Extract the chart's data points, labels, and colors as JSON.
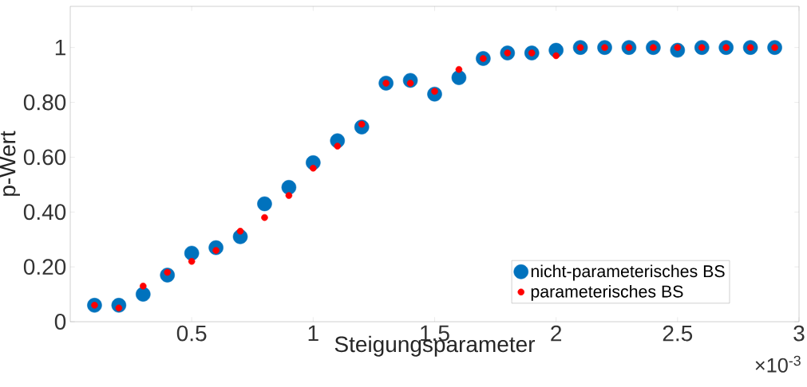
{
  "chart_data": {
    "type": "scatter",
    "xlabel": "Steigungsparameter",
    "ylabel": "p-Wert",
    "x": [
      0.1,
      0.2,
      0.3,
      0.4,
      0.5,
      0.6,
      0.7,
      0.8,
      0.9,
      1.0,
      1.1,
      1.2,
      1.3,
      1.4,
      1.5,
      1.6,
      1.7,
      1.8,
      1.9,
      2.0,
      2.1,
      2.2,
      2.3,
      2.4,
      2.5,
      2.6,
      2.7,
      2.8,
      2.9
    ],
    "series": [
      {
        "name": "nicht-parameterisches BS",
        "color": "#0072bd",
        "values": [
          0.06,
          0.06,
          0.1,
          0.17,
          0.25,
          0.27,
          0.31,
          0.43,
          0.49,
          0.58,
          0.66,
          0.71,
          0.87,
          0.88,
          0.83,
          0.89,
          0.96,
          0.98,
          0.98,
          0.99,
          1.0,
          1.0,
          1.0,
          1.0,
          0.99,
          1.0,
          1.0,
          1.0,
          1.0
        ]
      },
      {
        "name": "parameterisches BS",
        "color": "#ff0000",
        "values": [
          0.06,
          0.05,
          0.13,
          0.18,
          0.22,
          0.26,
          0.33,
          0.38,
          0.46,
          0.56,
          0.64,
          0.72,
          0.87,
          0.87,
          0.84,
          0.92,
          0.96,
          0.98,
          0.98,
          0.97,
          1.0,
          1.0,
          1.0,
          1.0,
          1.0,
          1.0,
          1.0,
          1.0,
          1.0
        ]
      }
    ],
    "xlim": [
      0,
      3
    ],
    "xticks": [
      0.5,
      1,
      1.5,
      2,
      2.5,
      3
    ],
    "ylim": [
      0,
      1.15
    ],
    "yticks": [
      0,
      {
        "value": 0.2,
        "label": "0.20"
      },
      {
        "value": 0.4,
        "label": "0.40"
      },
      {
        "value": 0.6,
        "label": "0.60"
      },
      {
        "value": 0.8,
        "label": "0.80"
      },
      1
    ],
    "annotations": [
      "×10$^{-3}$"
    ],
    "marker": "circle",
    "grid": false,
    "legend": "bottom right"
  }
}
